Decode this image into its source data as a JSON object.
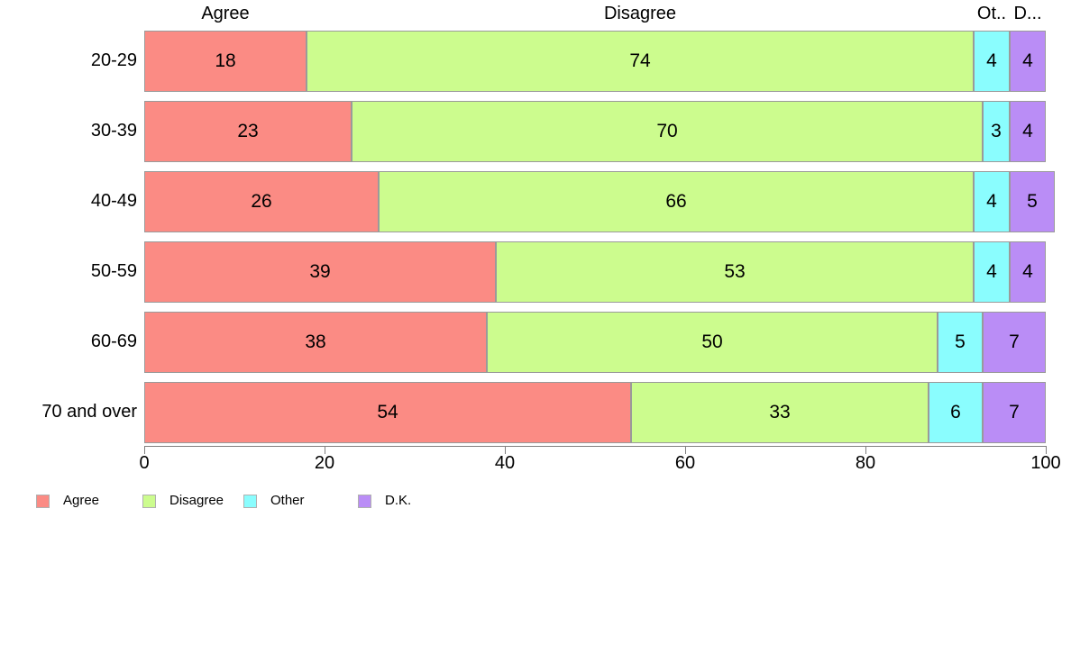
{
  "chart_data": {
    "type": "bar",
    "orientation": "horizontal",
    "stacked": true,
    "title": "",
    "xlabel": "",
    "ylabel": "",
    "grid": false,
    "xlim": [
      0,
      100
    ],
    "x_ticks": [
      "0",
      "20",
      "40",
      "60",
      "80",
      "100"
    ],
    "x_tick_values": [
      0,
      20,
      40,
      60,
      80,
      100
    ],
    "categories": [
      "20-29",
      "30-39",
      "40-49",
      "50-59",
      "60-69",
      "70 and over"
    ],
    "series": [
      {
        "name": "Agree",
        "color": "#FB8B84",
        "values": [
          18,
          23,
          26,
          39,
          38,
          54
        ]
      },
      {
        "name": "Disagree",
        "color": "#CCFC8E",
        "values": [
          74,
          70,
          66,
          53,
          50,
          33
        ]
      },
      {
        "name": "Other",
        "color": "#8AFDFE",
        "values": [
          4,
          3,
          4,
          4,
          5,
          6
        ]
      },
      {
        "name": "D.K.",
        "color": "#BA8DF6",
        "values": [
          4,
          4,
          5,
          4,
          7,
          7
        ]
      }
    ],
    "column_headers": [
      "Agree",
      "Disagree",
      "Ot..",
      "D..."
    ],
    "legend": {
      "position": "bottom",
      "entries": [
        {
          "label": "Agree",
          "color": "#FB8B84"
        },
        {
          "label": "Disagree",
          "color": "#CCFC8E"
        },
        {
          "label": "Other",
          "color": "#8AFDFE"
        },
        {
          "label": "D.K.",
          "color": "#BA8DF6"
        }
      ]
    }
  },
  "colors": {
    "background": "#FFFFFF",
    "segment_border": "#9A9A9A",
    "axis": "#808080",
    "text": "#000000"
  }
}
